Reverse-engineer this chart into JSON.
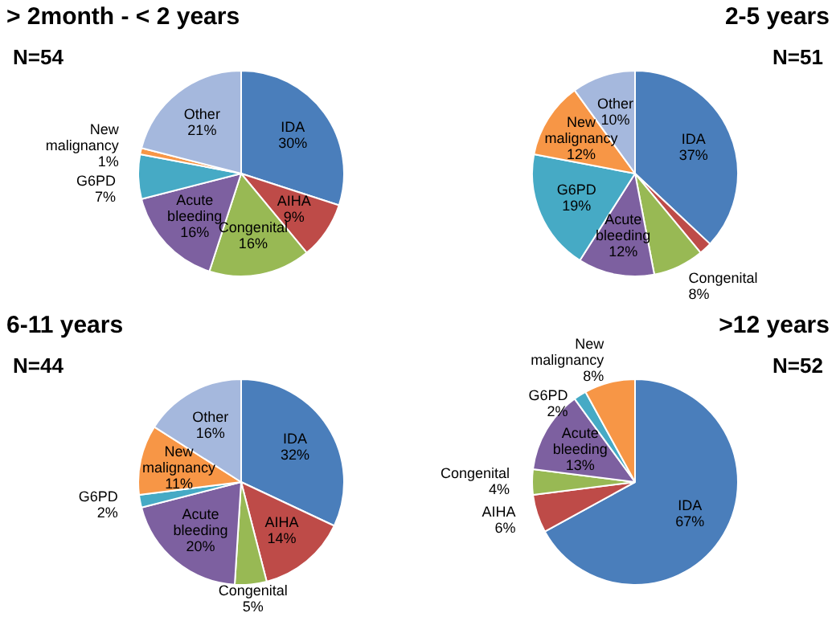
{
  "chart_data": [
    {
      "type": "pie",
      "title": "> 2month - < 2 years",
      "annotations": [
        "N=54"
      ],
      "categories": [
        "IDA",
        "AIHA",
        "Congenital",
        "Acute bleeding",
        "G6PD",
        "New malignancy",
        "Other"
      ],
      "values": [
        30,
        9,
        16,
        16,
        7,
        1,
        21
      ],
      "value_labels": [
        "30%",
        "9%",
        "16%",
        "16%",
        "7%",
        "1%",
        "21%"
      ],
      "colors": [
        "#4a7ebb",
        "#be4b48",
        "#98b954",
        "#7d60a0",
        "#46aac5",
        "#f79646",
        "#a5b8dd"
      ]
    },
    {
      "type": "pie",
      "title": "2-5 years",
      "annotations": [
        "N=51"
      ],
      "categories": [
        "IDA",
        null,
        "Congenital",
        "Acute bleeding",
        "G6PD",
        "New malignancy",
        "Other"
      ],
      "values": [
        37,
        2,
        8,
        12,
        19,
        12,
        10
      ],
      "value_labels": [
        "37%",
        null,
        "8%",
        "12%",
        "19%",
        "12%",
        "10%"
      ],
      "colors": [
        "#4a7ebb",
        "#be4b48",
        "#98b954",
        "#7d60a0",
        "#46aac5",
        "#f79646",
        "#a5b8dd"
      ]
    },
    {
      "type": "pie",
      "title": "6-11 years",
      "annotations": [
        "N=44"
      ],
      "categories": [
        "IDA",
        "AIHA",
        "Congenital",
        "Acute bleeding",
        "G6PD",
        "New malignancy",
        "Other"
      ],
      "values": [
        32,
        14,
        5,
        20,
        2,
        11,
        16
      ],
      "value_labels": [
        "32%",
        "14%",
        "5%",
        "20%",
        "2%",
        "11%",
        "16%"
      ],
      "colors": [
        "#4a7ebb",
        "#be4b48",
        "#98b954",
        "#7d60a0",
        "#46aac5",
        "#f79646",
        "#a5b8dd"
      ]
    },
    {
      "type": "pie",
      "title": ">12 years",
      "annotations": [
        "N=52"
      ],
      "categories": [
        "IDA",
        "AIHA",
        "Congenital",
        "Acute bleeding",
        "G6PD",
        "New malignancy"
      ],
      "values": [
        67,
        6,
        4,
        13,
        2,
        8
      ],
      "value_labels": [
        "67%",
        "6%",
        "4%",
        "13%",
        "2%",
        "8%"
      ],
      "colors": [
        "#4a7ebb",
        "#be4b48",
        "#98b954",
        "#7d60a0",
        "#46aac5",
        "#f79646"
      ]
    }
  ]
}
